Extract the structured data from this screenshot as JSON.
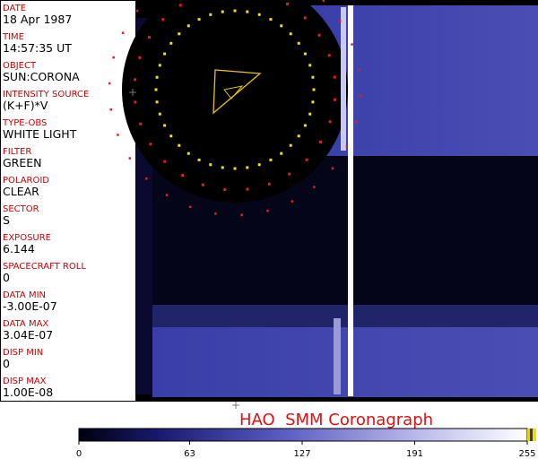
{
  "fields": [
    {
      "label": "DATE",
      "value": "18 Apr 1987"
    },
    {
      "label": "TIME",
      "value": "14:57:35 UT"
    },
    {
      "label": "OBJECT",
      "value": "SUN:CORONA"
    },
    {
      "label": "INTENSITY SOURCE",
      "value": "(K+F)*V"
    },
    {
      "label": "TYPE-OBS",
      "value": "WHITE LIGHT"
    },
    {
      "label": "FILTER",
      "value": "GREEN"
    },
    {
      "label": "POLAROID",
      "value": "CLEAR"
    },
    {
      "label": "SECTOR",
      "value": "S"
    },
    {
      "label": "EXPOSURE",
      "value": "6.144"
    },
    {
      "label": "SPACECRAFT ROLL",
      "value": "0"
    },
    {
      "label": "DATA MIN",
      "value": "-3.00E-07"
    },
    {
      "label": "DATA MAX",
      "value": "3.04E-07"
    },
    {
      "label": "DISP MIN",
      "value": "0"
    },
    {
      "label": "DISP MAX",
      "value": "1.00E-08"
    }
  ],
  "title": "HAO  SMM Coronagraph",
  "colorbar": {
    "lim": [
      0,
      255
    ],
    "ticks": [
      0,
      63,
      127,
      191,
      255
    ]
  }
}
